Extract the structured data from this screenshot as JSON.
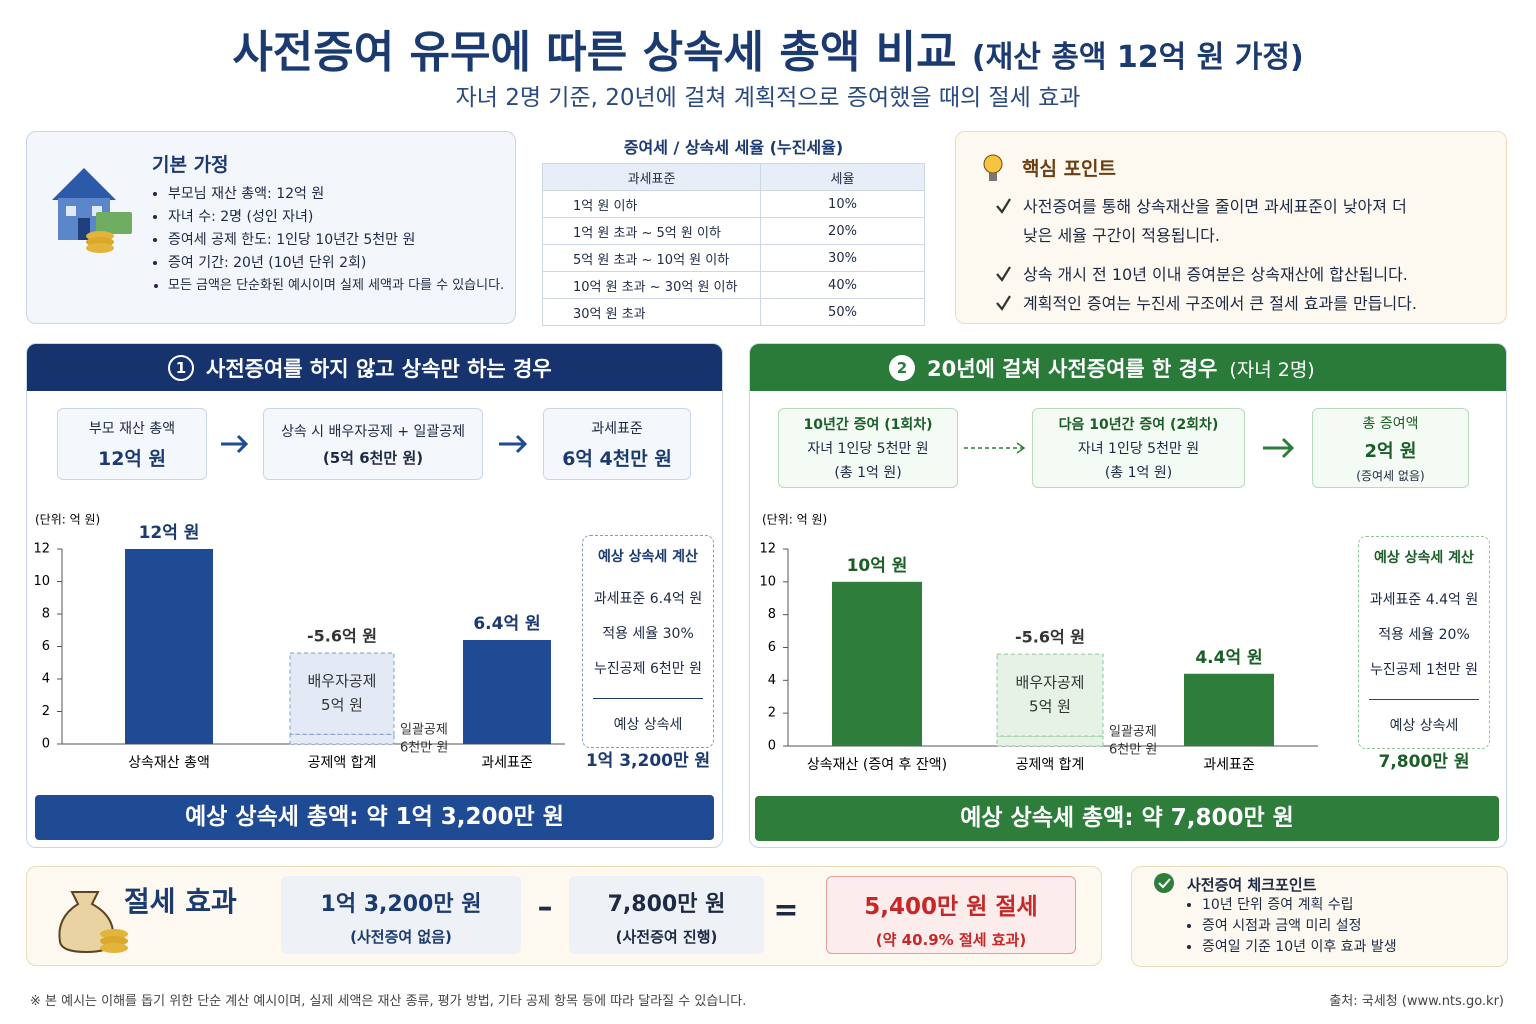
{
  "header": {
    "title": "사전증여 유무에 따른 상속세 총액 비교",
    "title_note": "(재산 총액 12억 원 가정)",
    "subtitle": "자녀 2명 기준, 20년에 걸쳐 계획적으로 증여했을 때의 절세 효과"
  },
  "assumptions": {
    "title": "기본 가정",
    "items": [
      "부모님 재산 총액: 12억 원",
      "자녀 수: 2명 (성인 자녀)",
      "증여세 공제 한도: 1인당 10년간 5천만 원",
      "증여 기간: 20년 (10년 단위 2회)",
      "모든 금액은 단순화된 예시이며 실제 세액과 다를 수 있습니다."
    ]
  },
  "tax_table": {
    "title": "증여세 / 상속세 세율 (누진세율)",
    "columns": [
      "과세표준",
      "세율"
    ],
    "rows": [
      [
        "1억 원 이하",
        "10%"
      ],
      [
        "1억 원 초과 ~ 5억 원 이하",
        "20%"
      ],
      [
        "5억 원 초과 ~ 10억 원 이하",
        "30%"
      ],
      [
        "10억 원 초과 ~ 30억 원 이하",
        "40%"
      ],
      [
        "30억 원 초과",
        "50%"
      ]
    ]
  },
  "key_points": {
    "title": "핵심 포인트",
    "items": [
      "사전증여를 통해 상속재산을 줄이면 과세표준이 낮아져 더 낮은 세율 구간이 적용됩니다.",
      "상속 개시 전 10년 이내 증여분은 상속재산에 합산됩니다.",
      "계획적인 증여는 누진세 구조에서 큰 절세 효과를 만듭니다."
    ]
  },
  "case1": {
    "number": "1",
    "title": "사전증여를 하지 않고 상속만 하는 경우",
    "flow": [
      {
        "title": "부모 재산 총액",
        "detail": "12억 원"
      },
      {
        "title": "상속 시 배우자공제 + 일괄공제",
        "detail": "(5억 6천만 원)"
      },
      {
        "title": "과세표준",
        "detail": "6억 4천만 원"
      }
    ],
    "calc": {
      "title": "예상 상속세 계산",
      "lines": [
        "과세표준 6.4억 원",
        "적용 세율 30%",
        "누진공제 6천만 원"
      ],
      "result_label": "예상 상속세",
      "result": "1억 3,200만 원"
    },
    "total": "예상 상속세 총액: 약 1억 3,200만 원"
  },
  "case2": {
    "number": "2",
    "title": "20년에 걸쳐 사전증여를 한 경우",
    "title_note": "(자녀 2명)",
    "flow": [
      {
        "title": "10년간 증여 (1회차)",
        "detail": "자녀 1인당 5천만 원",
        "note": "(총 1억 원)"
      },
      {
        "title": "다음 10년간 증여 (2회차)",
        "detail": "자녀 1인당 5천만 원",
        "note": "(총 1억 원)"
      },
      {
        "title": "총 증여액",
        "detail": "2억 원",
        "note": "(증여세 없음)"
      }
    ],
    "calc": {
      "title": "예상 상속세 계산",
      "lines": [
        "과세표준 4.4억 원",
        "적용 세율 20%",
        "누진공제 1천만 원"
      ],
      "result_label": "예상 상속세",
      "result": "7,800만 원"
    },
    "total": "예상 상속세 총액: 약 7,800만 원"
  },
  "chart_data": [
    {
      "type": "bar",
      "unit_label": "(단위: 억 원)",
      "categories": [
        "상속재산 총액",
        "공제액 합계",
        "과세표준"
      ],
      "ylim": [
        0,
        12
      ],
      "yticks": [
        0,
        2,
        4,
        6,
        8,
        10,
        12
      ],
      "series": [
        {
          "color": "#1f4a94",
          "values": [
            12,
            null,
            6.4
          ],
          "value_labels": [
            "12억 원",
            null,
            "6.4억 원"
          ]
        },
        {
          "name": "일괄공제",
          "color": "#e3eaf6",
          "values": [
            null,
            0.6,
            null
          ],
          "value_labels": [
            null,
            "6천만 원",
            null
          ]
        },
        {
          "name": "배우자공제",
          "color": "#e3eaf6",
          "values": [
            null,
            5,
            null
          ],
          "value_labels": [
            null,
            "5억 원",
            null
          ]
        }
      ],
      "annotations": [
        {
          "text": "-5.6억 원"
        }
      ]
    },
    {
      "type": "bar",
      "unit_label": "(단위: 억 원)",
      "categories": [
        "상속재산 (증여 후 잔액)",
        "공제액 합계",
        "과세표준"
      ],
      "ylim": [
        0,
        12
      ],
      "yticks": [
        0,
        2,
        4,
        6,
        8,
        10,
        12
      ],
      "series": [
        {
          "color": "#2e7d3b",
          "values": [
            10,
            null,
            4.4
          ],
          "value_labels": [
            "10억 원",
            null,
            "4.4억 원"
          ]
        },
        {
          "name": "일괄공제",
          "color": "#e6f2e6",
          "values": [
            null,
            0.6,
            null
          ],
          "value_labels": [
            null,
            "6천만 원",
            null
          ]
        },
        {
          "name": "배우자공제",
          "color": "#e6f2e6",
          "values": [
            null,
            5,
            null
          ],
          "value_labels": [
            null,
            "5억 원",
            null
          ]
        }
      ],
      "annotations": [
        {
          "text": "-5.6억 원"
        }
      ]
    }
  ],
  "savings": {
    "title": "절세 효과",
    "left": {
      "value": "1억 3,200만 원",
      "note": "(사전증여 없음)"
    },
    "minus": "–",
    "right": {
      "value": "7,800만 원",
      "note": "(사전증여 진행)"
    },
    "equals": "=",
    "result": {
      "value": "5,400만 원 절세",
      "note": "(약 40.9% 절세 효과)"
    }
  },
  "checkpoints": {
    "title": "사전증여 체크포인트",
    "items": [
      "10년 단위 증여 계획 수립",
      "증여 시점과 금액 미리 설정",
      "증여일 기준 10년 이후 효과 발생"
    ]
  },
  "footer": {
    "note": "※ 본 예시는 이해를 돕기 위한 단순 계산 예시이며, 실제 세액은 재산 종류, 평가 방법, 기타 공제 항목 등에 따라 달라질 수 있습니다.",
    "source": "출처: 국세청 (www.nts.go.kr)"
  }
}
